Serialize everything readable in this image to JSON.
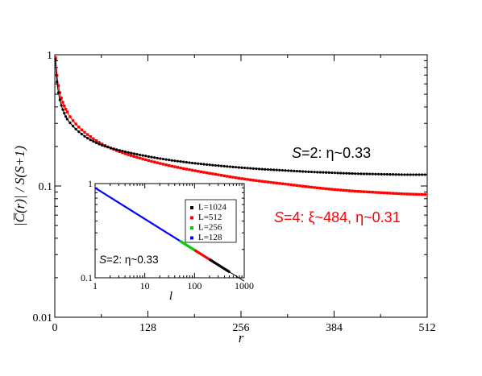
{
  "chart_data": [
    {
      "type": "scatter",
      "title": "",
      "xlabel": "r",
      "ylabel": "|C̅(r)| / S(S+1)",
      "x_scale": "linear",
      "y_scale": "log",
      "xlim": [
        0,
        512
      ],
      "ylim": [
        0.01,
        1
      ],
      "x_ticks": [
        "0",
        "128",
        "256",
        "384",
        "512"
      ],
      "y_ticks": [
        "0.01",
        "0.1",
        "1"
      ],
      "grid": false,
      "series": [
        {
          "name": "S=2",
          "color": "#000000",
          "values": [
            [
              1,
              0.92
            ],
            [
              2,
              0.72
            ],
            [
              4,
              0.56
            ],
            [
              8,
              0.43
            ],
            [
              12,
              0.37
            ],
            [
              16,
              0.33
            ],
            [
              24,
              0.29
            ],
            [
              32,
              0.262
            ],
            [
              48,
              0.226
            ],
            [
              64,
              0.205
            ],
            [
              96,
              0.183
            ],
            [
              128,
              0.168
            ],
            [
              160,
              0.157
            ],
            [
              192,
              0.149
            ],
            [
              224,
              0.143
            ],
            [
              256,
              0.138
            ],
            [
              288,
              0.134
            ],
            [
              320,
              0.131
            ],
            [
              352,
              0.128
            ],
            [
              384,
              0.126
            ],
            [
              416,
              0.124
            ],
            [
              448,
              0.123
            ],
            [
              480,
              0.122
            ],
            [
              512,
              0.122
            ]
          ]
        },
        {
          "name": "S=4",
          "color": "#ff0000",
          "values": [
            [
              1,
              0.95
            ],
            [
              2,
              0.8
            ],
            [
              4,
              0.63
            ],
            [
              8,
              0.49
            ],
            [
              12,
              0.42
            ],
            [
              16,
              0.375
            ],
            [
              24,
              0.32
            ],
            [
              32,
              0.285
            ],
            [
              48,
              0.24
            ],
            [
              64,
              0.21
            ],
            [
              96,
              0.177
            ],
            [
              128,
              0.157
            ],
            [
              160,
              0.142
            ],
            [
              192,
              0.131
            ],
            [
              224,
              0.122
            ],
            [
              256,
              0.114
            ],
            [
              288,
              0.108
            ],
            [
              320,
              0.103
            ],
            [
              352,
              0.098
            ],
            [
              384,
              0.094
            ],
            [
              416,
              0.091
            ],
            [
              448,
              0.089
            ],
            [
              480,
              0.087
            ],
            [
              512,
              0.086
            ]
          ]
        }
      ],
      "annotations": [
        {
          "parts": [
            "S",
            "=2: η~0.33"
          ],
          "color": "#000000"
        },
        {
          "parts": [
            "S",
            "=4: ξ~484, η~0.31"
          ],
          "color": "#ff0000"
        }
      ]
    },
    {
      "type": "scatter",
      "xlabel": "l",
      "ylabel": "",
      "x_scale": "log",
      "y_scale": "log",
      "xlim": [
        1,
        1000
      ],
      "ylim": [
        0.1,
        1
      ],
      "x_ticks": [
        "1",
        "10",
        "100",
        "1000"
      ],
      "y_ticks": [
        "0.1",
        "1"
      ],
      "series": [
        {
          "name": "L=1024",
          "color": "#000000",
          "range": [
            200,
            512
          ]
        },
        {
          "name": "L=512",
          "color": "#ff0000",
          "range": [
            100,
            256
          ]
        },
        {
          "name": "L=256",
          "color": "#00cc00",
          "range": [
            50,
            128
          ]
        },
        {
          "name": "L=128",
          "color": "#0000ff",
          "range": [
            1,
            64
          ]
        }
      ],
      "fit": {
        "exponent": -0.33
      },
      "legend_position": "top-right",
      "annotation": {
        "parts": [
          "S",
          "=2: η~0.33"
        ]
      }
    }
  ]
}
